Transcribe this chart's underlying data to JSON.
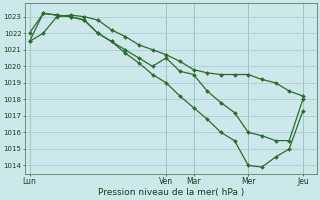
{
  "xlabel": "Pression niveau de la mer( hPa )",
  "bg_color": "#cce8ea",
  "grid_color": "#aacdd4",
  "line_color": "#2d6a2d",
  "ylim": [
    1013.5,
    1023.8
  ],
  "yticks": [
    1014,
    1015,
    1016,
    1017,
    1018,
    1019,
    1020,
    1021,
    1022,
    1023
  ],
  "xtick_labels": [
    "Lun",
    "Ven",
    "Mar",
    "Mer",
    "Jeu"
  ],
  "xtick_positions": [
    0,
    30,
    36,
    48,
    60
  ],
  "vline_positions": [
    0,
    30,
    36,
    48,
    60
  ],
  "series1_x": [
    0,
    3,
    6,
    9,
    12,
    15,
    18,
    21,
    24,
    27,
    30,
    33,
    36,
    39,
    42,
    45,
    48,
    51,
    54,
    57,
    60
  ],
  "series1_y": [
    1021.5,
    1022.0,
    1023.0,
    1023.1,
    1023.0,
    1022.8,
    1022.2,
    1021.8,
    1021.3,
    1021.0,
    1020.7,
    1020.3,
    1019.8,
    1019.6,
    1019.5,
    1019.5,
    1019.5,
    1019.2,
    1019.0,
    1018.5,
    1018.2
  ],
  "series2_x": [
    0,
    3,
    6,
    9,
    12,
    15,
    18,
    21,
    24,
    27,
    30,
    33,
    36,
    39,
    42,
    45,
    48,
    51,
    54,
    57,
    60
  ],
  "series2_y": [
    1022.0,
    1023.2,
    1023.1,
    1023.0,
    1022.8,
    1022.0,
    1021.5,
    1021.0,
    1020.5,
    1020.0,
    1020.5,
    1019.7,
    1019.5,
    1018.5,
    1017.8,
    1017.2,
    1016.0,
    1015.8,
    1015.5,
    1015.5,
    1018.0
  ],
  "series3_x": [
    0,
    3,
    6,
    9,
    12,
    15,
    18,
    21,
    24,
    27,
    30,
    33,
    36,
    39,
    42,
    45,
    48,
    51,
    54,
    57,
    60
  ],
  "series3_y": [
    1021.5,
    1023.2,
    1023.1,
    1023.0,
    1022.8,
    1022.0,
    1021.5,
    1020.8,
    1020.2,
    1019.5,
    1019.0,
    1018.2,
    1017.5,
    1016.8,
    1016.0,
    1015.5,
    1014.0,
    1013.9,
    1014.5,
    1015.0,
    1017.3
  ],
  "xlim": [
    -1,
    63
  ],
  "figsize": [
    3.2,
    2.0
  ],
  "dpi": 100
}
